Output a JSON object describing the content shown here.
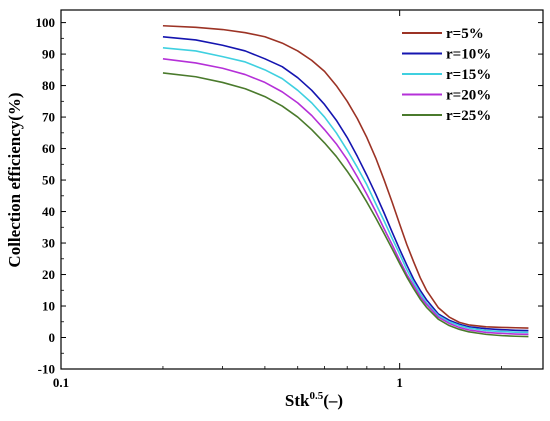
{
  "chart_data": {
    "type": "line",
    "title": "",
    "xlabel": "Stk",
    "xlabel_sup": "0.5",
    "xlabel_suffix": "(–)",
    "ylabel": "Collection efficiency(%)",
    "x_scale": "log",
    "xlim": [
      0.1,
      2.65
    ],
    "ylim": [
      -10,
      104
    ],
    "x_ticks": [
      {
        "value": 0.1,
        "label": "0.1"
      },
      {
        "value": 1,
        "label": "1"
      }
    ],
    "y_ticks": [
      {
        "value": -10,
        "label": "-10"
      },
      {
        "value": 0,
        "label": "0"
      },
      {
        "value": 10,
        "label": "10"
      },
      {
        "value": 20,
        "label": "20"
      },
      {
        "value": 30,
        "label": "30"
      },
      {
        "value": 40,
        "label": "40"
      },
      {
        "value": 50,
        "label": "50"
      },
      {
        "value": 60,
        "label": "60"
      },
      {
        "value": 70,
        "label": "70"
      },
      {
        "value": 80,
        "label": "80"
      },
      {
        "value": 90,
        "label": "90"
      },
      {
        "value": 100,
        "label": "100"
      }
    ],
    "grid": false,
    "legend_position": "top-right",
    "x": [
      0.2,
      0.25,
      0.3,
      0.35,
      0.4,
      0.45,
      0.5,
      0.55,
      0.6,
      0.65,
      0.7,
      0.75,
      0.8,
      0.85,
      0.9,
      0.95,
      1.0,
      1.05,
      1.1,
      1.15,
      1.2,
      1.3,
      1.4,
      1.5,
      1.6,
      1.8,
      2.0,
      2.2,
      2.4
    ],
    "series": [
      {
        "name": "r=5%",
        "color": "#9c3325",
        "values": [
          99,
          98.5,
          97.8,
          96.8,
          95.5,
          93.5,
          91,
          88,
          84.5,
          80,
          75,
          69.5,
          63.5,
          57,
          50,
          43,
          36,
          29.5,
          24,
          19,
          15,
          9.5,
          6.5,
          4.8,
          4,
          3.4,
          3.2,
          3.1,
          3
        ]
      },
      {
        "name": "r=10%",
        "color": "#1515b0",
        "values": [
          95.5,
          94.5,
          92.8,
          91,
          88.5,
          86,
          82.5,
          78.5,
          74,
          69,
          63.5,
          57.5,
          51.5,
          45.5,
          39.5,
          33.5,
          28,
          23,
          18.5,
          15,
          12,
          7.5,
          5.5,
          4.2,
          3.4,
          2.8,
          2.5,
          2.3,
          2.2
        ]
      },
      {
        "name": "r=15%",
        "color": "#3fd0e0",
        "values": [
          92,
          91,
          89.2,
          87.5,
          85,
          82.2,
          78.5,
          74.5,
          70,
          65,
          59.5,
          54,
          48.5,
          42.5,
          37,
          31.5,
          26.5,
          21.5,
          17.5,
          14,
          11,
          7,
          5,
          3.8,
          3,
          2.2,
          1.9,
          1.7,
          1.6
        ]
      },
      {
        "name": "r=20%",
        "color": "#b530d8",
        "values": [
          88.5,
          87.2,
          85.5,
          83.5,
          81,
          78,
          74.5,
          70.5,
          66,
          61.5,
          56.5,
          51,
          45.5,
          40,
          34.5,
          29.5,
          24.5,
          20,
          16.5,
          13,
          10.5,
          6.5,
          4.5,
          3.2,
          2.4,
          1.6,
          1.3,
          1.1,
          1
        ]
      },
      {
        "name": "r=25%",
        "color": "#4a7a2c",
        "values": [
          84,
          82.8,
          81,
          79,
          76.5,
          73.5,
          70,
          66,
          61.8,
          57.5,
          52.8,
          48,
          43,
          38,
          33,
          28.2,
          23.5,
          19.2,
          15.5,
          12.2,
          9.6,
          5.8,
          3.8,
          2.6,
          1.8,
          1,
          0.6,
          0.4,
          0.3
        ]
      }
    ]
  }
}
